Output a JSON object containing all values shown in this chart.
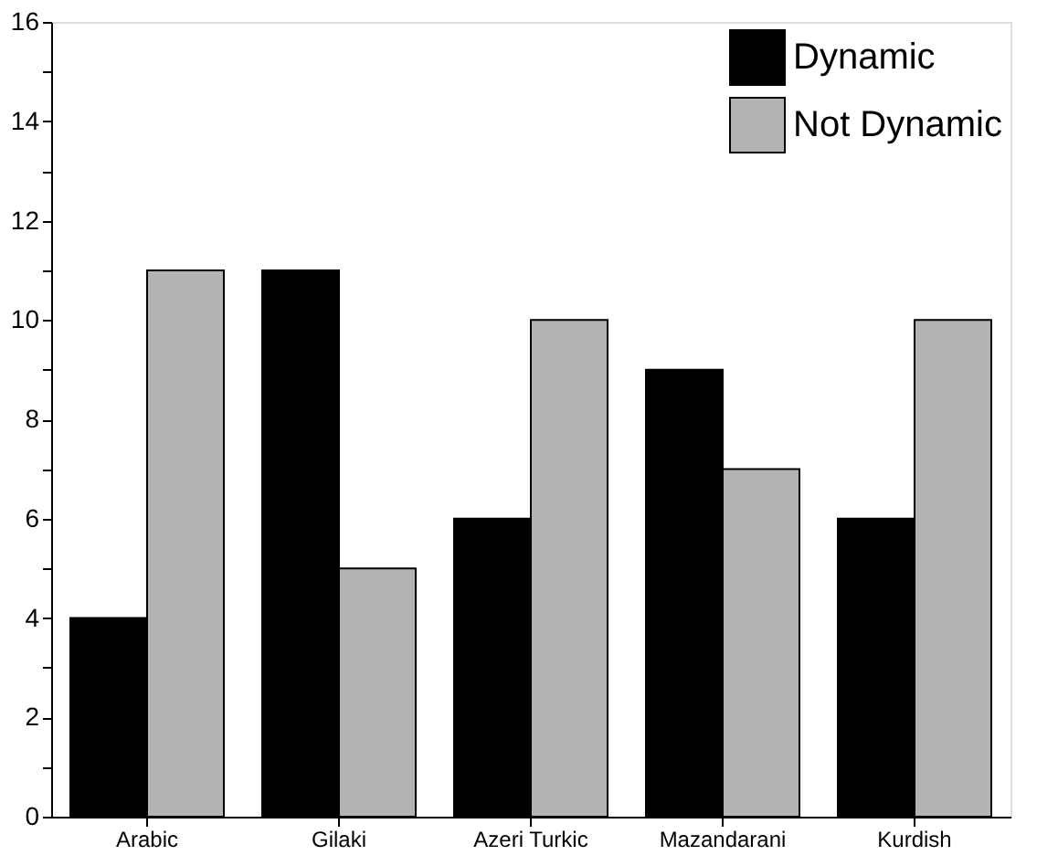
{
  "chart_data": {
    "type": "bar",
    "categories": [
      "Arabic",
      "Gilaki",
      "Azeri Turkic",
      "Mazandarani",
      "Kurdish"
    ],
    "series": [
      {
        "name": "Dynamic",
        "color": "#000000",
        "values": [
          4,
          11,
          6,
          9,
          6
        ]
      },
      {
        "name": "Not Dynamic",
        "color": "#b4b4b4",
        "values": [
          11,
          5,
          10,
          7,
          10
        ]
      }
    ],
    "ylim": [
      0,
      16
    ],
    "yticks": [
      0,
      {
        "value": 1,
        "label": null
      },
      2,
      {
        "value": 3,
        "label": null
      },
      4,
      {
        "value": 5,
        "label": null
      },
      6,
      {
        "value": 7,
        "label": null
      },
      8,
      {
        "value": 9,
        "label": null
      },
      10,
      {
        "value": 11,
        "label": null
      },
      12,
      {
        "value": 13,
        "label": null
      },
      14,
      {
        "value": 15,
        "label": null
      },
      16
    ],
    "grid": false,
    "legend": "top right"
  }
}
